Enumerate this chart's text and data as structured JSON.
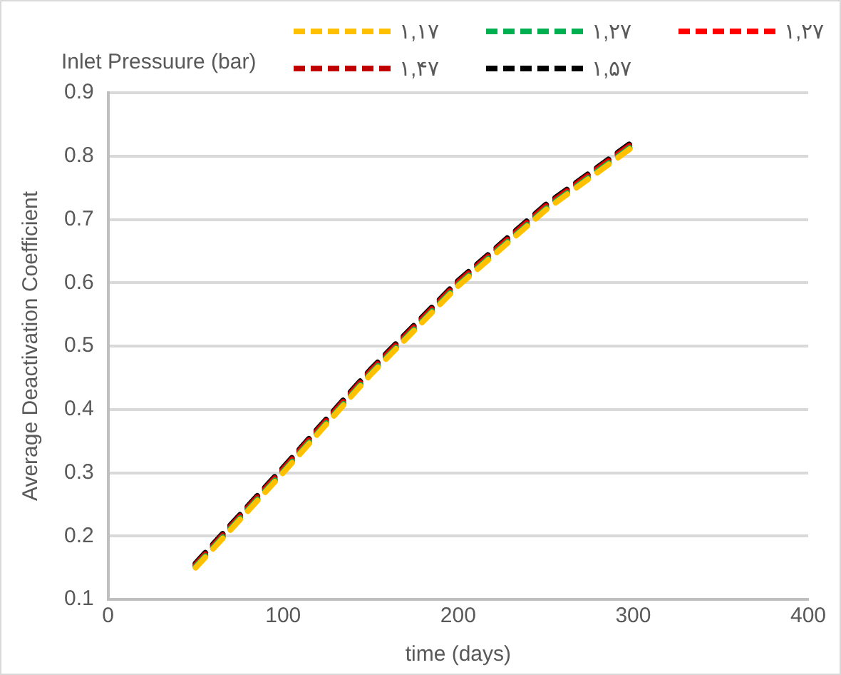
{
  "chart_data": {
    "type": "line",
    "legend_title": "Inlet Pressuure (bar)",
    "xlabel": "time (days)",
    "ylabel": "Average Deactivation Coefficient",
    "x": [
      50,
      100,
      150,
      200,
      250,
      300
    ],
    "series": [
      {
        "name": "۱,۱۷",
        "color": "#ffc000",
        "values": [
          0.15,
          0.3,
          0.455,
          0.595,
          0.715,
          0.815
        ]
      },
      {
        "name": "۱,۲۷",
        "color": "#00b050",
        "values": [
          0.152,
          0.302,
          0.457,
          0.597,
          0.717,
          0.817
        ]
      },
      {
        "name": "۱,۲۷",
        "color": "#ff0000",
        "values": [
          0.153,
          0.304,
          0.459,
          0.599,
          0.719,
          0.819
        ]
      },
      {
        "name": "۱,۴۷",
        "color": "#c00000",
        "values": [
          0.155,
          0.306,
          0.461,
          0.601,
          0.721,
          0.821
        ]
      },
      {
        "name": "۱,۵۷",
        "color": "#000000",
        "values": [
          0.157,
          0.308,
          0.463,
          0.603,
          0.723,
          0.823
        ]
      }
    ],
    "xlim": [
      0,
      400
    ],
    "xticks": [
      0,
      100,
      200,
      300,
      400
    ],
    "ylim": [
      0.1,
      0.9
    ],
    "yticks": [
      0.1,
      0.2,
      0.3,
      0.4,
      0.5,
      0.6,
      0.7,
      0.8,
      0.9
    ],
    "grid": "y",
    "legend": "top",
    "line_style": "dashed",
    "marker": "none"
  }
}
